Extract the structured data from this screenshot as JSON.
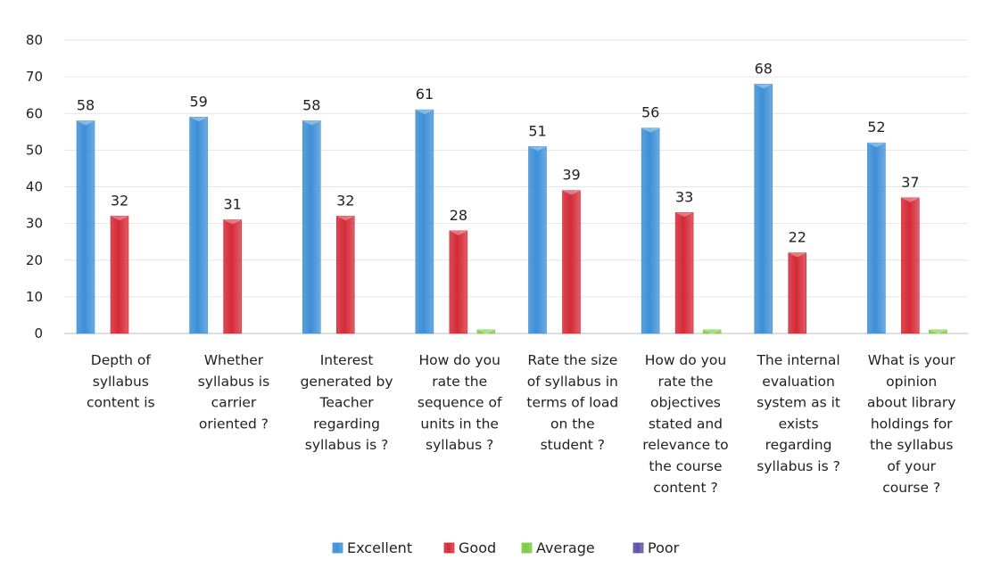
{
  "chart_data": {
    "type": "bar",
    "categories": [
      [
        "Depth of",
        "syllabus",
        "content is"
      ],
      [
        "Whether",
        "syllabus is",
        "carrier",
        "oriented ?"
      ],
      [
        "Interest",
        "generated by",
        "Teacher",
        "regarding",
        "syllabus is ?"
      ],
      [
        "How do you",
        "rate the",
        "sequence of",
        "units in the",
        "syllabus ?"
      ],
      [
        "Rate the size",
        "of syllabus in",
        "terms of load",
        "on the",
        "student ?"
      ],
      [
        "How do you",
        "rate the",
        "objectives",
        "stated and",
        "relevance to",
        "the course",
        "content ?"
      ],
      [
        "The internal",
        "evaluation",
        "system as it",
        "exists",
        "regarding",
        "syllabus is ?"
      ],
      [
        "What is your",
        "opinion",
        "about library",
        "holdings for",
        "the syllabus",
        "of your",
        "course ?"
      ]
    ],
    "series": [
      {
        "name": "Excellent",
        "color": "#3d8fd6",
        "values": [
          58,
          59,
          58,
          61,
          51,
          56,
          68,
          52
        ],
        "labels": [
          "58",
          "59",
          "58",
          "61",
          "51",
          "56",
          "68",
          "52"
        ]
      },
      {
        "name": "Good",
        "color": "#d42a36",
        "values": [
          32,
          31,
          32,
          28,
          39,
          33,
          22,
          37
        ],
        "labels": [
          "32",
          "31",
          "32",
          "28",
          "39",
          "33",
          "22",
          "37"
        ]
      },
      {
        "name": "Average",
        "color": "#7ac943",
        "values": [
          0,
          0,
          0,
          1,
          0,
          1,
          0,
          1
        ],
        "labels": []
      },
      {
        "name": "Poor",
        "color": "#5b4fa8",
        "values": [
          0,
          0,
          0,
          0,
          0,
          0,
          0,
          0
        ],
        "labels": []
      }
    ],
    "ylim": [
      0,
      80
    ],
    "yticks": [
      "0",
      "10",
      "20",
      "30",
      "40",
      "50",
      "60",
      "70",
      "80"
    ],
    "grid": true,
    "legend_position": "bottom"
  }
}
